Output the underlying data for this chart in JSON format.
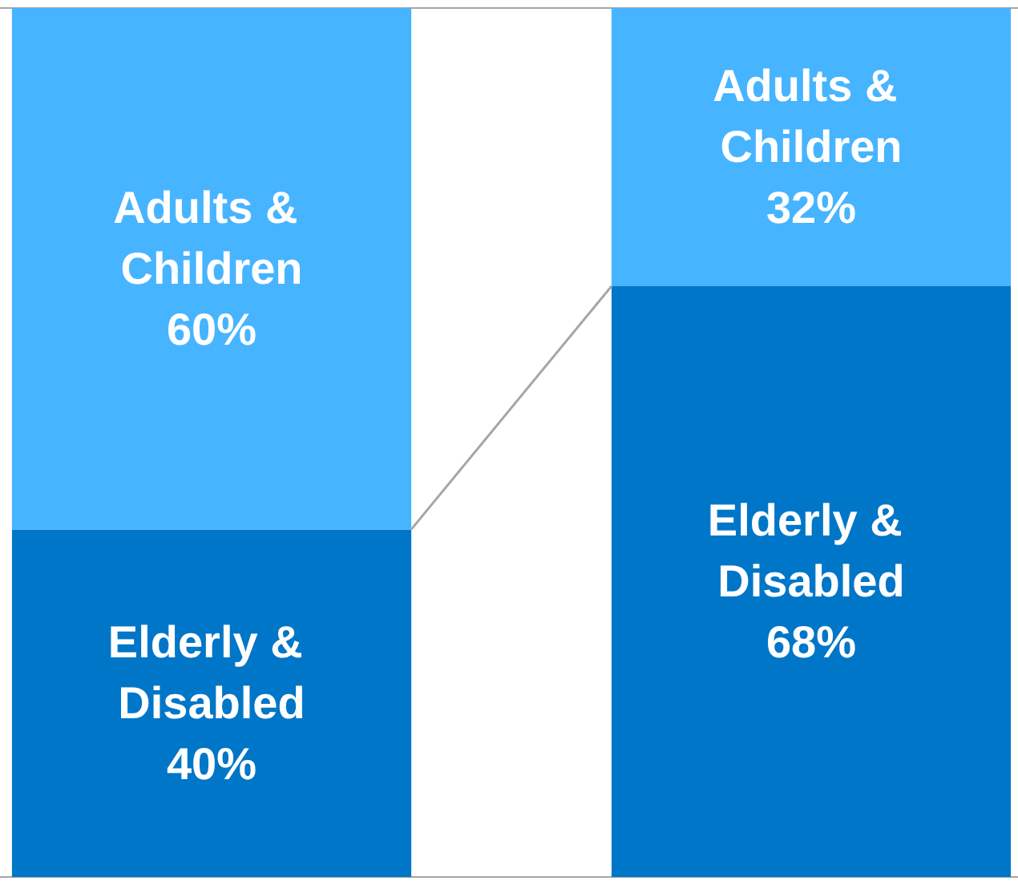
{
  "chart_data": {
    "type": "bar",
    "stacked": true,
    "categories": [
      null,
      null
    ],
    "series": [
      {
        "name": "Elderly & Disabled",
        "color": "#0076c8",
        "values": [
          40,
          68
        ],
        "value_labels": [
          "40%",
          "68%"
        ]
      },
      {
        "name": "Adults & Children",
        "color": "#47b4ff",
        "values": [
          60,
          32
        ],
        "value_labels": [
          "60%",
          "32%"
        ]
      }
    ],
    "legend": false,
    "grid": false
  }
}
